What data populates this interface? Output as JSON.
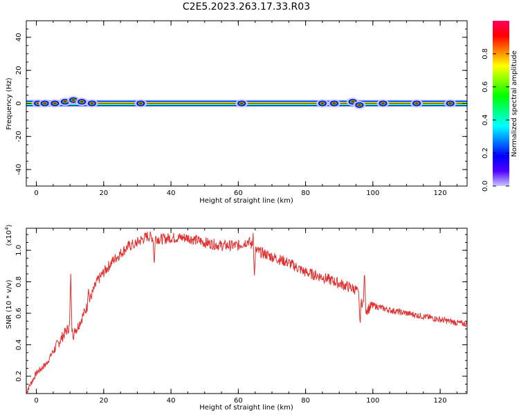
{
  "title": "C2E5.2023.263.17.33.R03",
  "chart_data": [
    {
      "type": "heatmap",
      "xlabel": "Height of straight line (km)",
      "ylabel": "Frequency (Hz)",
      "xlim": [
        -3,
        128
      ],
      "ylim": [
        -50,
        50
      ],
      "xticks": [
        "0",
        "20",
        "40",
        "60",
        "80",
        "100",
        "120"
      ],
      "yticks": [
        "-40",
        "-20",
        "0",
        "20",
        "40"
      ],
      "band_center_hz": 0,
      "band_halfwidth_hz": 2,
      "colorbar": {
        "label": "Normalized spectral amplitude",
        "range": [
          0,
          1
        ],
        "ticks": [
          "0.0",
          "0.2",
          "0.4",
          "0.6",
          "0.8"
        ],
        "colors": [
          "#c8c8ff",
          "#5000ff",
          "#0000ff",
          "#0080ff",
          "#00ffff",
          "#00ff80",
          "#00ff00",
          "#80ff00",
          "#ffff00",
          "#ff8000",
          "#ff0000",
          "#ff0060"
        ]
      },
      "hotspots": [
        {
          "x": 0.5,
          "y": 0
        },
        {
          "x": 2.5,
          "y": 0
        },
        {
          "x": 5.5,
          "y": 0
        },
        {
          "x": 8.5,
          "y": 1
        },
        {
          "x": 11,
          "y": 2
        },
        {
          "x": 13.5,
          "y": 1
        },
        {
          "x": 16.5,
          "y": 0
        },
        {
          "x": 31,
          "y": 0
        },
        {
          "x": 61,
          "y": 0
        },
        {
          "x": 85,
          "y": 0
        },
        {
          "x": 88.5,
          "y": 0
        },
        {
          "x": 94,
          "y": 1
        },
        {
          "x": 96,
          "y": -1
        },
        {
          "x": 103,
          "y": 0
        },
        {
          "x": 113,
          "y": 0
        },
        {
          "x": 123,
          "y": 0
        }
      ]
    },
    {
      "type": "line",
      "xlabel": "Height of straight line (km)",
      "ylabel": "SNR (10 * v/v)",
      "multiplier_label": "(x10",
      "multiplier_exp": "4",
      "xlim": [
        -3,
        128
      ],
      "ylim": [
        0.09,
        1.14
      ],
      "xticks": [
        "0",
        "20",
        "40",
        "60",
        "80",
        "100",
        "120"
      ],
      "yticks": [
        "0.2",
        "0.4",
        "0.6",
        "0.8",
        "1.0"
      ],
      "color": "#e03030",
      "x": [
        -3,
        0,
        3,
        5,
        8,
        10,
        12,
        15,
        18,
        20,
        23,
        27,
        30,
        33,
        37,
        40,
        45,
        50,
        55,
        60,
        63,
        65,
        70,
        75,
        80,
        85,
        90,
        95,
        98,
        100,
        105,
        110,
        115,
        120,
        125,
        128
      ],
      "y": [
        0.1,
        0.22,
        0.28,
        0.36,
        0.46,
        0.52,
        0.5,
        0.64,
        0.8,
        0.86,
        0.94,
        1.02,
        1.05,
        1.09,
        1.07,
        1.08,
        1.08,
        1.05,
        1.03,
        1.03,
        1.06,
        1.0,
        0.96,
        0.92,
        0.86,
        0.83,
        0.79,
        0.75,
        0.62,
        0.65,
        0.62,
        0.6,
        0.58,
        0.56,
        0.54,
        0.53
      ],
      "spikes": [
        {
          "x": 10.2,
          "y": 0.85
        },
        {
          "x": 11.0,
          "y": 0.42
        },
        {
          "x": 15.5,
          "y": 0.76
        },
        {
          "x": 29.0,
          "y": 1.01
        },
        {
          "x": 35.0,
          "y": 0.9
        },
        {
          "x": 64.5,
          "y": 1.13
        },
        {
          "x": 64.8,
          "y": 0.84
        },
        {
          "x": 96.2,
          "y": 0.52
        },
        {
          "x": 97.5,
          "y": 0.88
        }
      ]
    }
  ]
}
